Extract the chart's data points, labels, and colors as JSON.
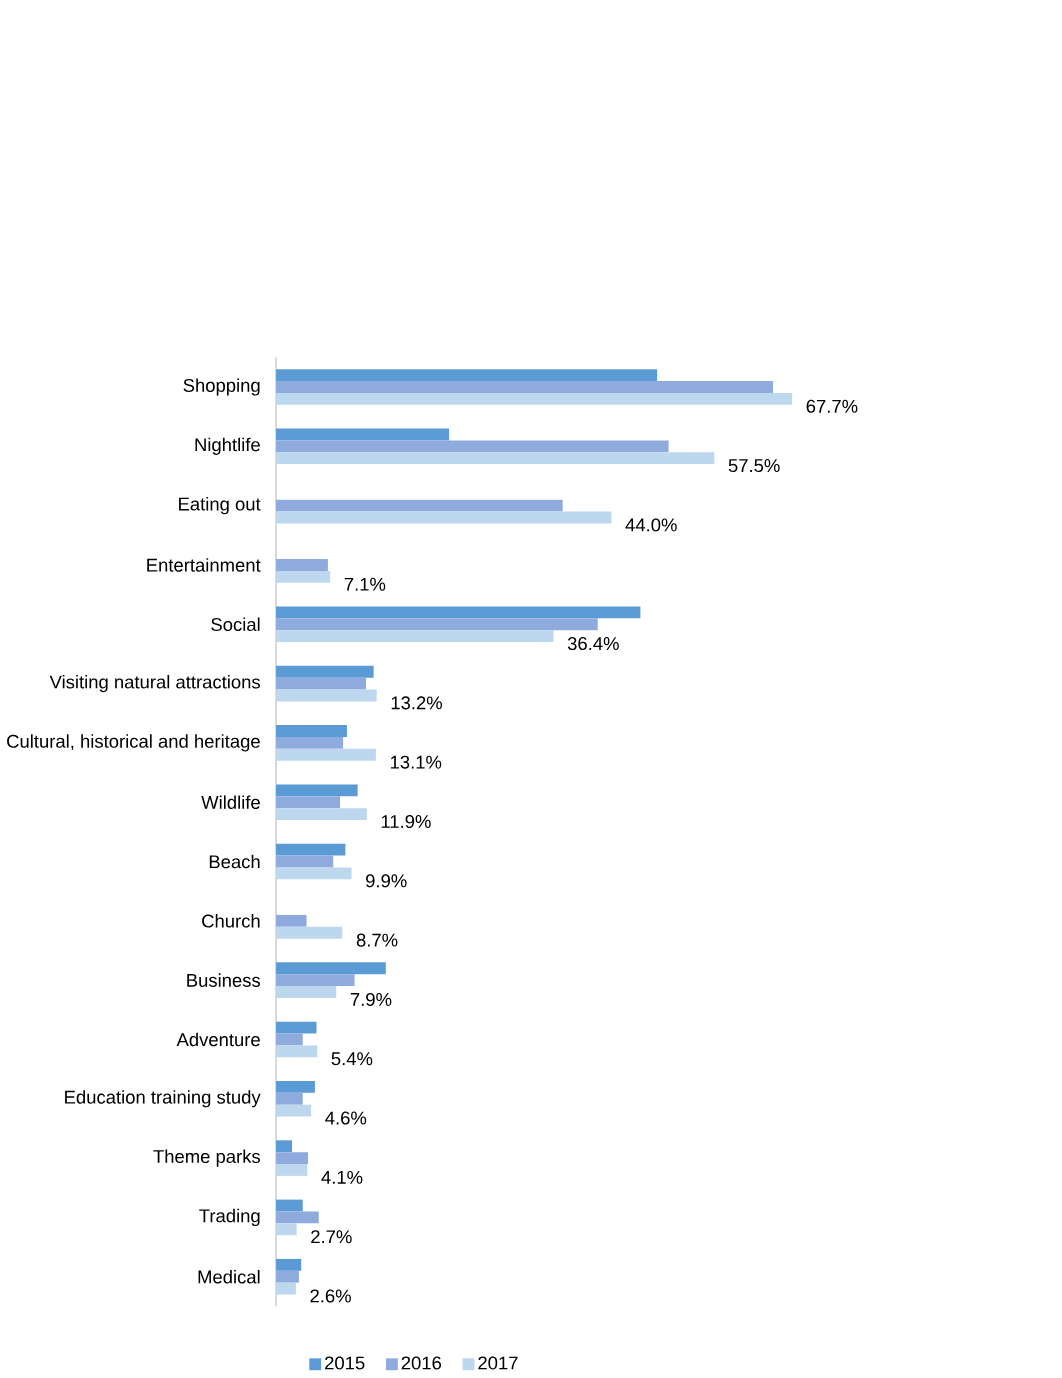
{
  "chart_data": {
    "type": "bar",
    "orientation": "horizontal",
    "legend": "bottom",
    "categories": [
      "Shopping",
      "Nightlife",
      "Eating out",
      "Entertainment",
      "Social",
      "Visiting natural attractions",
      "Cultural, historical and heritage",
      "Wildlife",
      "Beach",
      "Church",
      "Business",
      "Adventure",
      "Education training study",
      "Theme parks",
      "Trading",
      "Medical"
    ],
    "series": [
      {
        "name": "2015",
        "color": "#5b9bd5",
        "values": [
          50.0,
          22.7,
          null,
          null,
          47.8,
          12.8,
          9.3,
          10.7,
          9.1,
          null,
          14.4,
          5.3,
          5.1,
          2.1,
          3.5,
          3.3
        ]
      },
      {
        "name": "2016",
        "color": "#8faadc",
        "values": [
          65.2,
          51.5,
          37.6,
          6.8,
          42.2,
          11.8,
          8.8,
          8.4,
          7.5,
          4.0,
          10.3,
          3.5,
          3.5,
          4.2,
          5.6,
          3.0
        ]
      },
      {
        "name": "2017",
        "color": "#bdd7ee",
        "values": [
          67.7,
          57.5,
          44.0,
          7.1,
          36.4,
          13.2,
          13.1,
          11.9,
          9.9,
          8.7,
          7.9,
          5.4,
          4.6,
          4.1,
          2.7,
          2.6
        ],
        "value_labels": [
          "67.7%",
          "57.5%",
          "44.0%",
          "7.1%",
          "36.4%",
          "13.2%",
          "13.1%",
          "11.9%",
          "9.9%",
          "8.7%",
          "7.9%",
          "5.4%",
          "4.6%",
          "4.1%",
          "2.7%",
          "2.6%"
        ]
      }
    ]
  }
}
